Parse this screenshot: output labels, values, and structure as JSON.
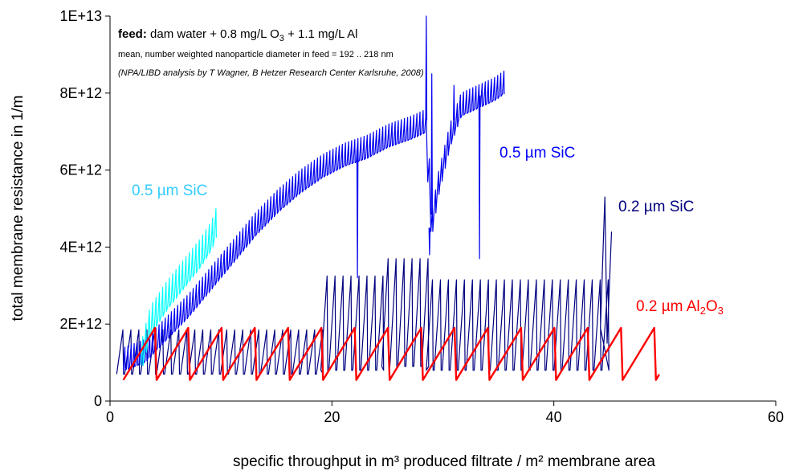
{
  "chart_data": {
    "type": "line",
    "title": "",
    "xlabel": "specific throughput in m³ produced filtrate / m² membrane area",
    "ylabel": "total membrane resistance in 1/m",
    "xlim": [
      0,
      60
    ],
    "ylim": [
      0,
      10000000000000
    ],
    "x_ticks": [
      0,
      20,
      40,
      60
    ],
    "x_tick_labels": [
      "0",
      "20",
      "40",
      "60"
    ],
    "y_ticks": [
      0,
      2000000000000,
      4000000000000,
      6000000000000,
      8000000000000,
      10000000000000
    ],
    "y_tick_labels": [
      "0",
      "2E+12",
      "4E+12",
      "6E+12",
      "8E+12",
      "1E+13"
    ],
    "grid": false,
    "annotations": {
      "feed_bold": "feed:",
      "feed_text_a": " dam water + 0.8 mg/L O",
      "feed_sub": "3",
      "feed_text_b": " + 1.1 mg/L Al",
      "line2": "mean, number weighted nanoparticle diameter in feed  = 192 .. 218 nm",
      "line3": "(NPA/LIBD analysis by T Wagner, B Hetzer Research Center Karlsruhe, 2008)"
    },
    "series": [
      {
        "name": "0.5 µm SiC",
        "label_color": "#33ccff",
        "color": "#00ffff",
        "cycle_period": 0.3,
        "points": [
          [
            2.8,
            1300000000000
          ],
          [
            3.5,
            2100000000000
          ],
          [
            5.0,
            2750000000000
          ],
          [
            6.5,
            3300000000000
          ],
          [
            8.0,
            3850000000000
          ],
          [
            9.0,
            4300000000000
          ],
          [
            9.5,
            4700000000000
          ]
        ],
        "amplitude": 750000000000
      },
      {
        "name": "0.5 µm SiC",
        "label_color": "#0000ff",
        "color": "#0000ee",
        "cycle_period": 0.28,
        "points": [
          [
            1.2,
            1100000000000
          ],
          [
            3.0,
            1300000000000
          ],
          [
            5.0,
            1900000000000
          ],
          [
            7.0,
            2500000000000
          ],
          [
            9.0,
            3200000000000
          ],
          [
            11.0,
            3900000000000
          ],
          [
            13.0,
            4600000000000
          ],
          [
            15.0,
            5200000000000
          ],
          [
            17.0,
            5700000000000
          ],
          [
            19.0,
            6100000000000
          ],
          [
            21.0,
            6400000000000
          ],
          [
            23.0,
            6600000000000
          ],
          [
            25.0,
            6900000000000
          ],
          [
            27.0,
            7100000000000
          ],
          [
            28.5,
            7300000000000
          ],
          [
            28.8,
            4500000000000
          ],
          [
            29.5,
            5700000000000
          ],
          [
            30.5,
            6900000000000
          ],
          [
            31.5,
            7700000000000
          ],
          [
            33.0,
            7900000000000
          ],
          [
            34.5,
            8100000000000
          ],
          [
            35.5,
            8300000000000
          ]
        ],
        "amplitude": 600000000000,
        "spikes": [
          [
            22.3,
            3200000000000
          ],
          [
            28.5,
            10000000000000
          ],
          [
            28.8,
            3800000000000
          ],
          [
            29.0,
            8500000000000
          ],
          [
            31.0,
            8200000000000
          ],
          [
            33.3,
            3700000000000
          ]
        ]
      },
      {
        "name": "0.2 µm SiC",
        "label_color": "#000080",
        "color": "#000080",
        "cycle_period": 0.72,
        "segments": [
          {
            "x": [
              0.6,
              19.0
            ],
            "low": 700000000000,
            "high": 1850000000000
          },
          {
            "x": [
              19.0,
              24.5
            ],
            "low": 800000000000,
            "high": 3250000000000
          },
          {
            "x": [
              24.5,
              28.5
            ],
            "low": 900000000000,
            "high": 3700000000000
          },
          {
            "x": [
              28.5,
              44.5
            ],
            "low": 800000000000,
            "high": 3150000000000
          }
        ],
        "tail": [
          [
            44.2,
            1900000000000
          ],
          [
            44.6,
            5300000000000
          ],
          [
            44.8,
            1500000000000
          ],
          [
            45.2,
            4400000000000
          ]
        ]
      },
      {
        "name": "0.2 µm Al",
        "name_sub": "2",
        "name_mid": "O",
        "name_sub2": "3",
        "label_color": "#ff0000",
        "color": "#ff0000",
        "cycle_period": 3.0,
        "x_start": 1.2,
        "x_end": 49.5,
        "low": 550000000000,
        "high": 1900000000000
      }
    ]
  }
}
